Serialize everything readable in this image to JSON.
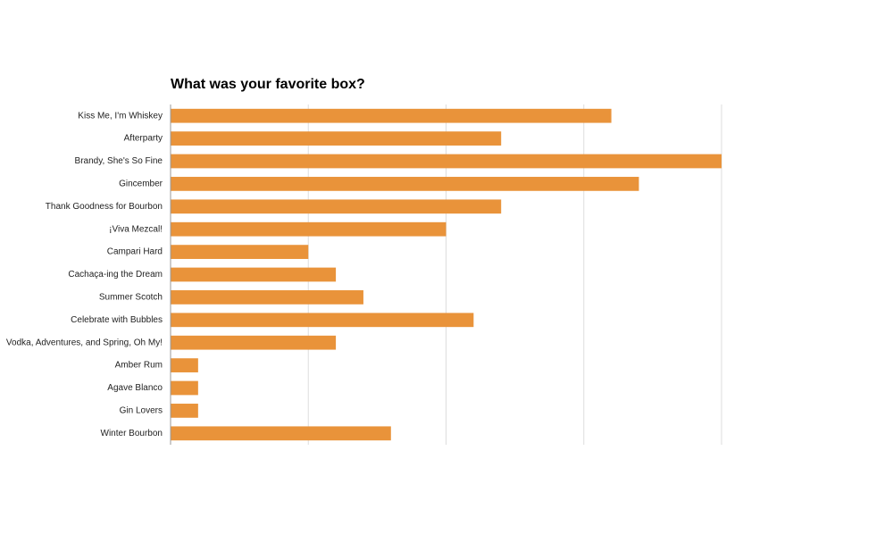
{
  "chart_data": {
    "type": "bar",
    "orientation": "horizontal",
    "title": "What was your favorite box?",
    "xlabel": "",
    "ylabel": "",
    "categories": [
      "Kiss Me, I'm Whiskey",
      "Afterparty",
      "Brandy, She's So Fine",
      "Gincember",
      "Thank Goodness for Bourbon",
      "¡Viva Mezcal!",
      "Campari Hard",
      "Cachaça-ing the Dream",
      "Summer Scotch",
      "Celebrate with Bubbles",
      "Vodka, Adventures, and Spring, Oh My!",
      "Amber Rum",
      "Agave Blanco",
      "Gin Lovers",
      "Winter Bourbon"
    ],
    "values": [
      16,
      12,
      20,
      17,
      12,
      10,
      5,
      6,
      7,
      11,
      6,
      1,
      1,
      1,
      8
    ],
    "xlim": [
      0,
      20
    ],
    "gridlines_at": [
      5,
      10,
      15,
      20
    ],
    "grid": true,
    "tick_labels_shown": false,
    "legend": "none",
    "bar_color": "#E9933A",
    "grid_color": "#DDDDDD",
    "axis_color": "#999999"
  }
}
